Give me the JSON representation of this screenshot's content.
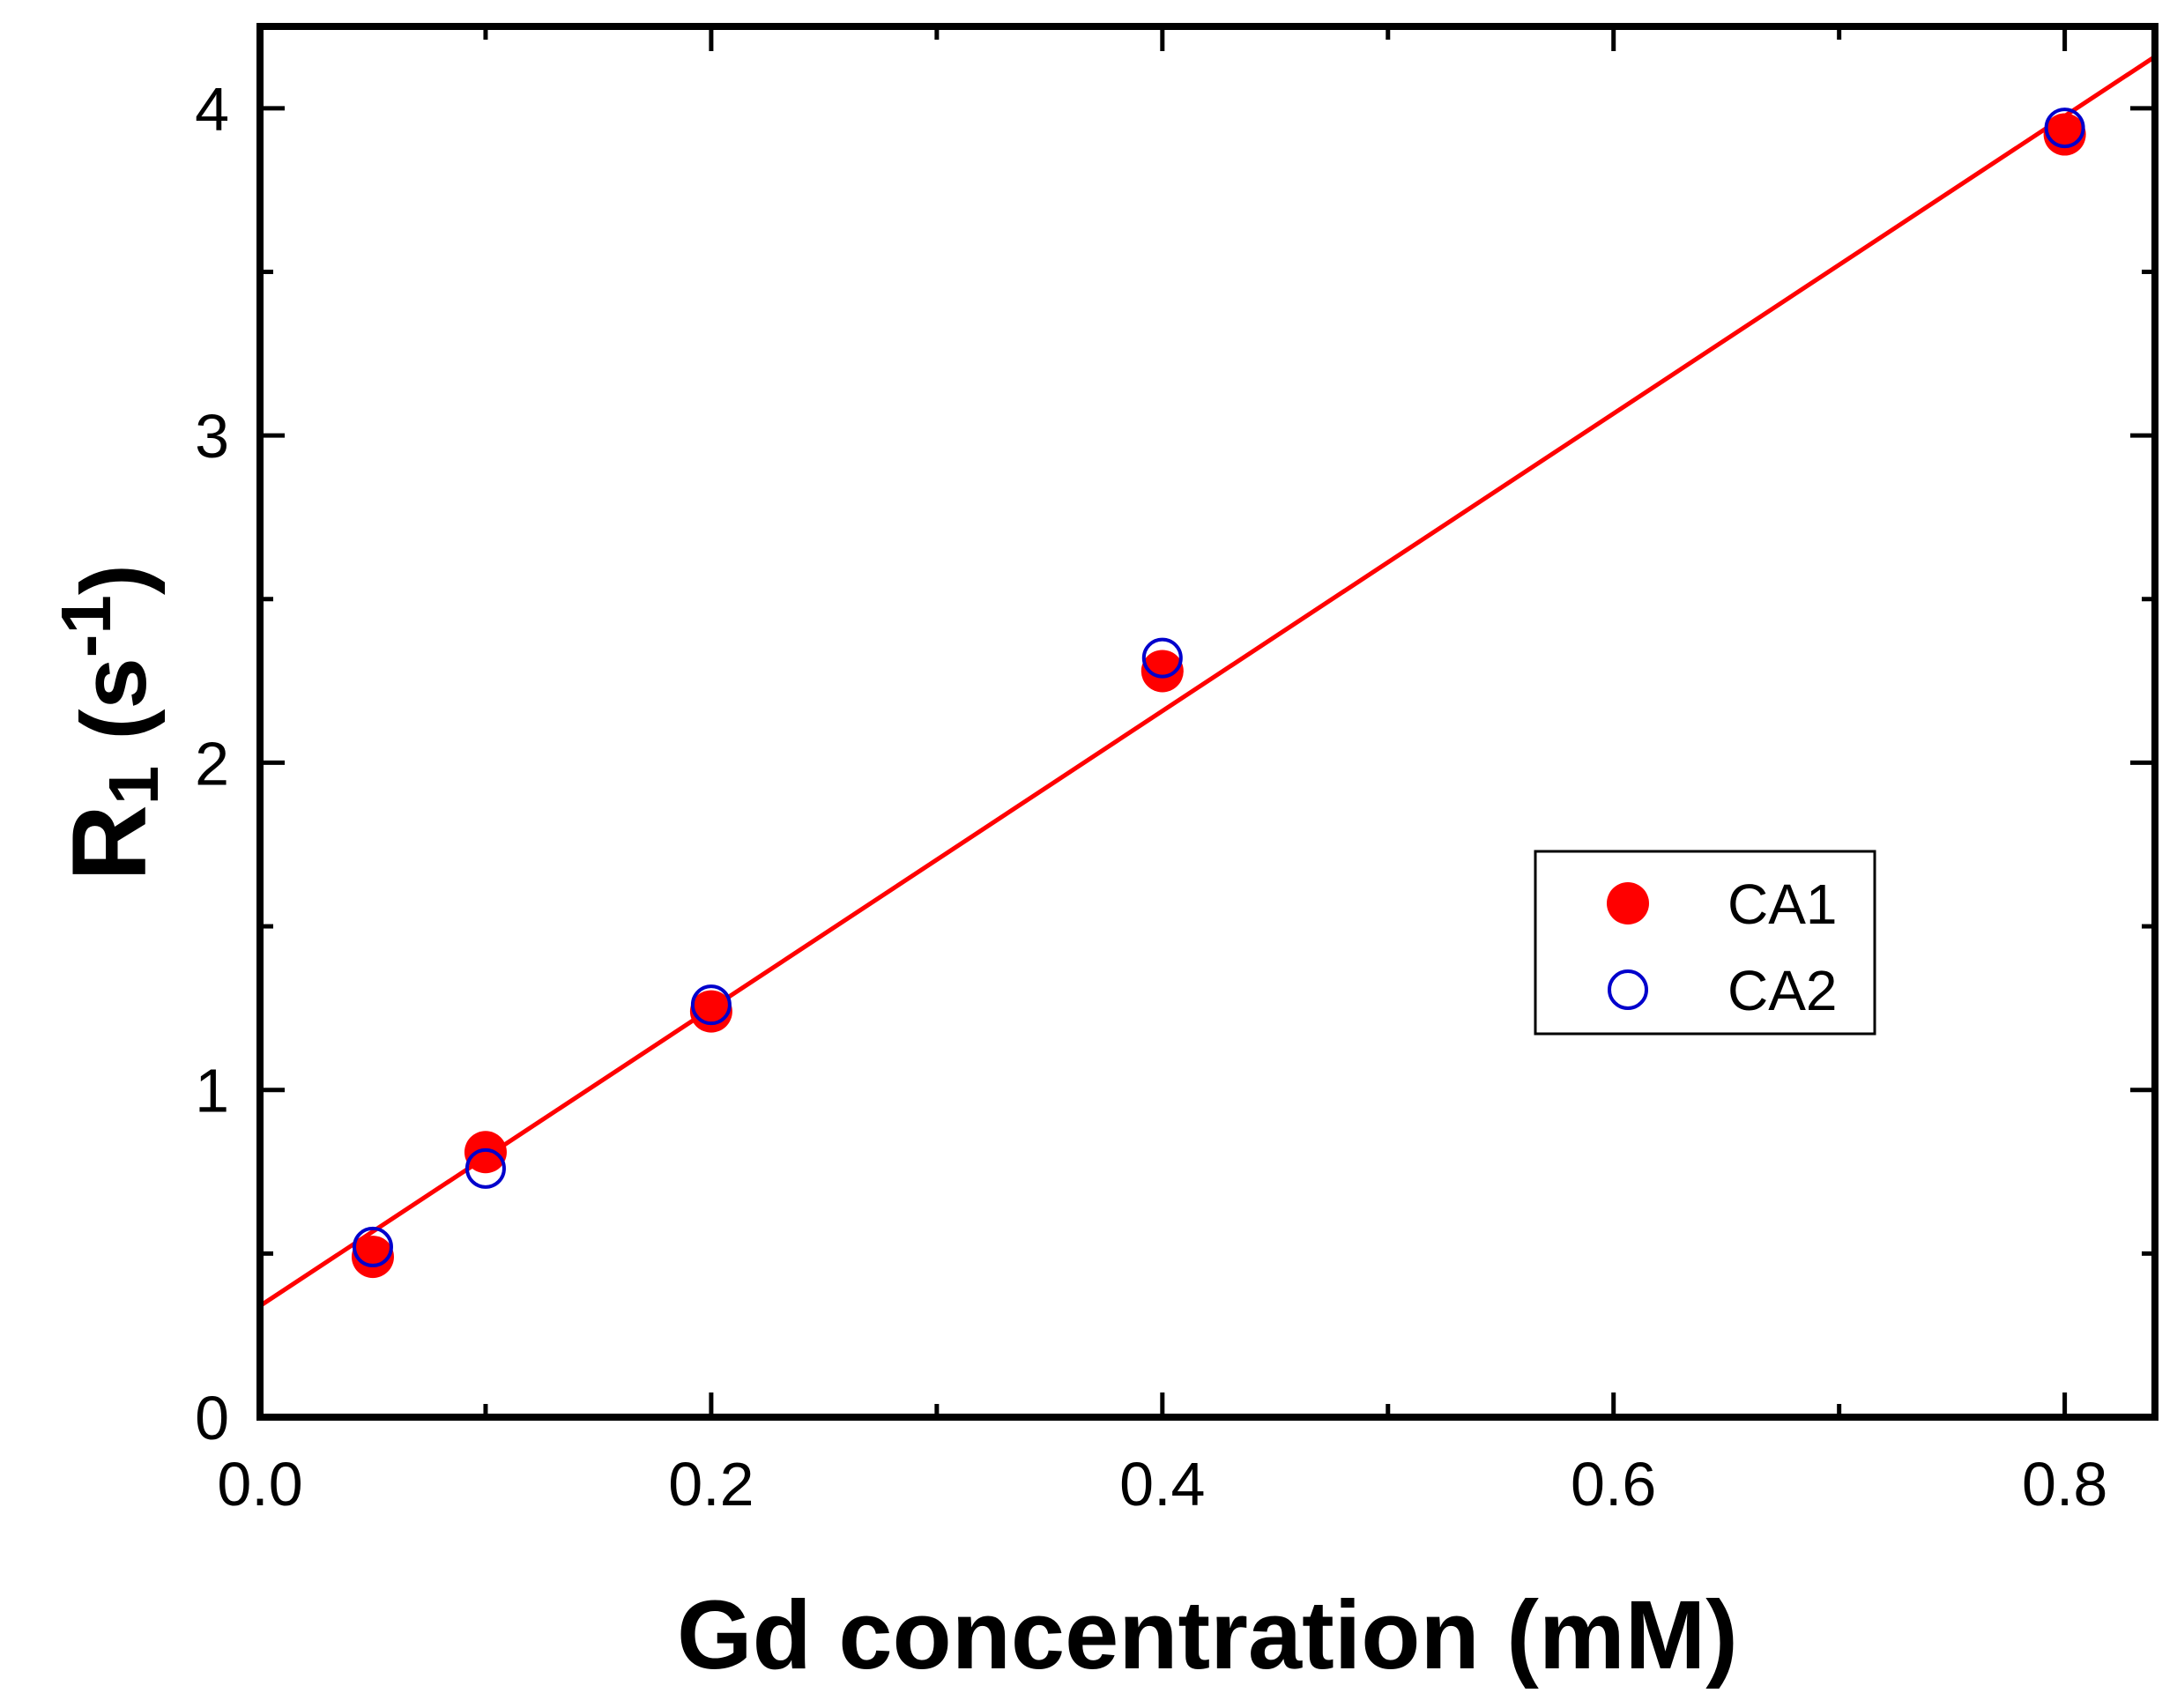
{
  "chart_data": {
    "type": "scatter",
    "xlabel": "Gd concentration (mM)",
    "ylabel": {
      "main": "R",
      "sub": "1",
      "open": " (s",
      "sup": "-1",
      "close": ")"
    },
    "xlim": [
      0,
      0.84
    ],
    "ylim": [
      0,
      4.25
    ],
    "x_major_ticks": [
      0.0,
      0.2,
      0.4,
      0.6,
      0.8
    ],
    "x_tick_labels": [
      "0.0",
      "0.2",
      "0.4",
      "0.6",
      "0.8"
    ],
    "x_minor_ticks": [
      0.1,
      0.3,
      0.5,
      0.7
    ],
    "y_major_ticks": [
      0,
      1,
      2,
      3,
      4
    ],
    "y_tick_labels": [
      "0",
      "1",
      "2",
      "3",
      "4"
    ],
    "y_minor_ticks": [
      0.5,
      1.5,
      2.5,
      3.5
    ],
    "grid": false,
    "legend_position": "center-right",
    "series": [
      {
        "name": "CA1",
        "marker": "filled-circle",
        "color": "#ff0000",
        "x": [
          0.05,
          0.1,
          0.2,
          0.4,
          0.8
        ],
        "y": [
          0.49,
          0.81,
          1.24,
          2.28,
          3.92
        ]
      },
      {
        "name": "CA2",
        "marker": "open-circle",
        "color": "#0000cc",
        "x": [
          0.05,
          0.1,
          0.2,
          0.4,
          0.8
        ],
        "y": [
          0.52,
          0.76,
          1.26,
          2.32,
          3.94
        ]
      }
    ],
    "fit_line": {
      "color": "#ff0000",
      "intercept": 0.34,
      "slope": 4.545,
      "x_range": [
        0,
        0.84
      ]
    }
  }
}
